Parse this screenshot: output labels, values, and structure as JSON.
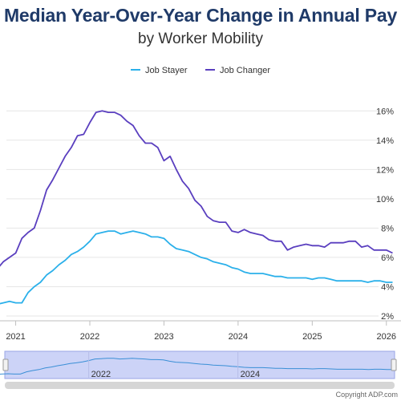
{
  "chart_data": {
    "type": "line",
    "title": "Median Year-Over-Year Change in Annual Pay",
    "subtitle": "by Worker Mobility",
    "xlabel": "",
    "ylabel": "",
    "x_ticks": [
      "2021",
      "2022",
      "2023",
      "2024",
      "2025",
      "2026"
    ],
    "y_ticks": [
      "2%",
      "4%",
      "6%",
      "8%",
      "10%",
      "12%",
      "14%",
      "16%"
    ],
    "ylim": [
      2,
      17
    ],
    "grid": "horizontal",
    "legend_position": "top-center",
    "series": [
      {
        "name": "Job Stayer",
        "color": "#2bb0ea",
        "x": [
          "2020-10",
          "2020-11",
          "2020-12",
          "2021-01",
          "2021-02",
          "2021-03",
          "2021-04",
          "2021-05",
          "2021-06",
          "2021-07",
          "2021-08",
          "2021-09",
          "2021-10",
          "2021-11",
          "2021-12",
          "2022-01",
          "2022-02",
          "2022-03",
          "2022-04",
          "2022-05",
          "2022-06",
          "2022-07",
          "2022-08",
          "2022-09",
          "2022-10",
          "2022-11",
          "2022-12",
          "2023-01",
          "2023-02",
          "2023-03",
          "2023-04",
          "2023-05",
          "2023-06",
          "2023-07",
          "2023-08",
          "2023-09",
          "2023-10",
          "2023-11",
          "2023-12",
          "2024-01",
          "2024-02",
          "2024-03",
          "2024-04",
          "2024-05",
          "2024-06",
          "2024-07",
          "2024-08",
          "2024-09",
          "2024-10",
          "2024-11",
          "2024-12",
          "2025-01",
          "2025-02",
          "2025-03",
          "2025-04",
          "2025-05",
          "2025-06",
          "2025-07",
          "2025-08",
          "2025-09",
          "2025-10",
          "2025-11",
          "2025-12",
          "2026-01",
          "2026-02"
        ],
        "values": [
          2.8,
          2.9,
          3.0,
          2.9,
          2.9,
          3.6,
          4.0,
          4.3,
          4.8,
          5.1,
          5.5,
          5.8,
          6.2,
          6.4,
          6.7,
          7.1,
          7.6,
          7.7,
          7.8,
          7.8,
          7.6,
          7.7,
          7.8,
          7.7,
          7.6,
          7.4,
          7.4,
          7.3,
          6.9,
          6.6,
          6.5,
          6.4,
          6.2,
          6.0,
          5.9,
          5.7,
          5.6,
          5.5,
          5.3,
          5.2,
          5.0,
          4.9,
          4.9,
          4.9,
          4.8,
          4.7,
          4.7,
          4.6,
          4.6,
          4.6,
          4.6,
          4.5,
          4.6,
          4.6,
          4.5,
          4.4,
          4.4,
          4.4,
          4.4,
          4.4,
          4.3,
          4.4,
          4.4,
          4.3,
          4.3
        ]
      },
      {
        "name": "Job Changer",
        "color": "#5a3fbf",
        "x": [
          "2020-10",
          "2020-11",
          "2020-12",
          "2021-01",
          "2021-02",
          "2021-03",
          "2021-04",
          "2021-05",
          "2021-06",
          "2021-07",
          "2021-08",
          "2021-09",
          "2021-10",
          "2021-11",
          "2021-12",
          "2022-01",
          "2022-02",
          "2022-03",
          "2022-04",
          "2022-05",
          "2022-06",
          "2022-07",
          "2022-08",
          "2022-09",
          "2022-10",
          "2022-11",
          "2022-12",
          "2023-01",
          "2023-02",
          "2023-03",
          "2023-04",
          "2023-05",
          "2023-06",
          "2023-07",
          "2023-08",
          "2023-09",
          "2023-10",
          "2023-11",
          "2023-12",
          "2024-01",
          "2024-02",
          "2024-03",
          "2024-04",
          "2024-05",
          "2024-06",
          "2024-07",
          "2024-08",
          "2024-09",
          "2024-10",
          "2024-11",
          "2024-12",
          "2025-01",
          "2025-02",
          "2025-03",
          "2025-04",
          "2025-05",
          "2025-06",
          "2025-07",
          "2025-08",
          "2025-09",
          "2025-10",
          "2025-11",
          "2025-12",
          "2026-01",
          "2026-02"
        ],
        "values": [
          5.2,
          5.7,
          6.0,
          6.3,
          7.3,
          7.7,
          8.0,
          9.2,
          10.6,
          11.3,
          12.1,
          12.9,
          13.5,
          14.3,
          14.4,
          15.2,
          15.9,
          16.0,
          15.9,
          15.9,
          15.7,
          15.3,
          15.0,
          14.3,
          13.8,
          13.8,
          13.5,
          12.6,
          12.9,
          12.0,
          11.2,
          10.7,
          9.9,
          9.5,
          8.8,
          8.5,
          8.4,
          8.4,
          7.8,
          7.7,
          7.9,
          7.7,
          7.6,
          7.5,
          7.2,
          7.1,
          7.1,
          6.5,
          6.7,
          6.8,
          6.9,
          6.8,
          6.8,
          6.7,
          7.0,
          7.0,
          7.0,
          7.1,
          7.1,
          6.7,
          6.8,
          6.5,
          6.5,
          6.5,
          6.3
        ]
      }
    ]
  },
  "navigator": {
    "labels": [
      "2022",
      "2024"
    ]
  },
  "copyright": "Copyright ADP.com"
}
